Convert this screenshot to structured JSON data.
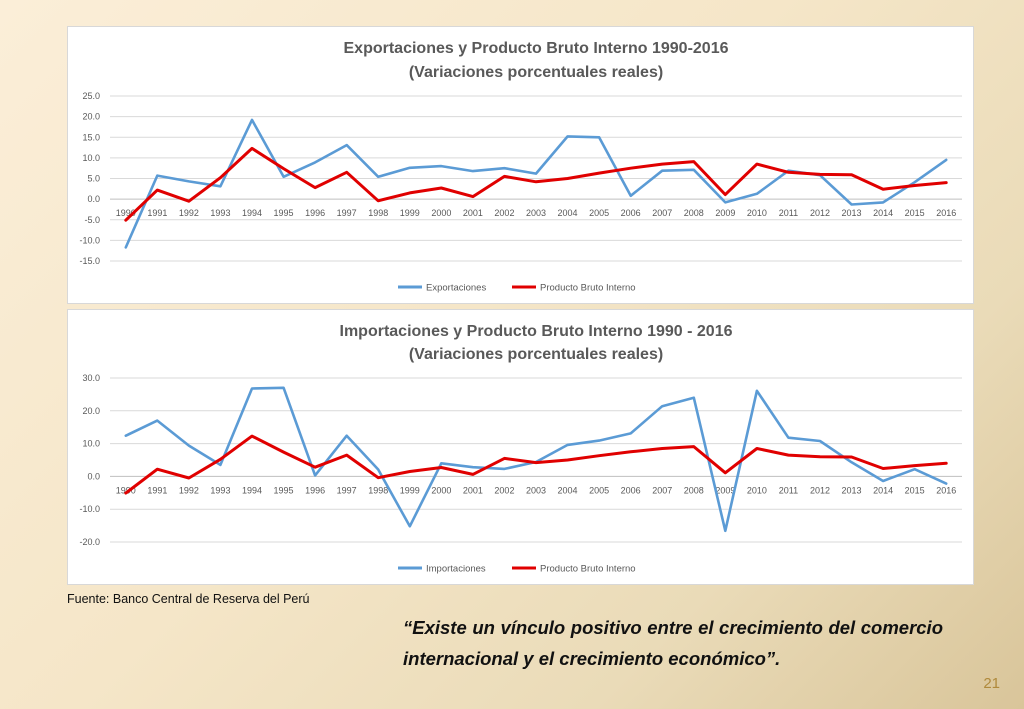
{
  "chart_data": [
    {
      "type": "line",
      "title": "Exportaciones y Producto Bruto Interno 1990-2016",
      "subtitle": "(Variaciones porcentuales reales)",
      "categories": [
        "1990",
        "1991",
        "1992",
        "1993",
        "1994",
        "1995",
        "1996",
        "1997",
        "1998",
        "1999",
        "2000",
        "2001",
        "2002",
        "2003",
        "2004",
        "2005",
        "2006",
        "2007",
        "2008",
        "2009",
        "2010",
        "2011",
        "2012",
        "2013",
        "2014",
        "2015",
        "2016"
      ],
      "yticks": [
        "25.0",
        "20.0",
        "15.0",
        "10.0",
        "5.0",
        "0.0",
        "-5.0",
        "-10.0",
        "-15.0"
      ],
      "ylim": [
        -15,
        25
      ],
      "grid": true,
      "legend_position": "bottom",
      "series": [
        {
          "name": "Exportaciones",
          "color": "#5b9bd5",
          "values": [
            -11.7,
            5.7,
            4.3,
            3.1,
            19.2,
            5.4,
            8.9,
            13.1,
            5.4,
            7.6,
            8.0,
            6.8,
            7.5,
            6.2,
            15.2,
            15.0,
            0.8,
            6.9,
            7.1,
            -0.8,
            1.3,
            6.9,
            5.8,
            -1.3,
            -0.8,
            4.1,
            9.5
          ]
        },
        {
          "name": "Producto Bruto Interno",
          "color": "#e00000",
          "values": [
            -5.1,
            2.2,
            -0.5,
            5.2,
            12.3,
            7.4,
            2.8,
            6.5,
            -0.4,
            1.5,
            2.7,
            0.6,
            5.5,
            4.2,
            5.0,
            6.3,
            7.5,
            8.5,
            9.1,
            1.1,
            8.5,
            6.5,
            6.0,
            5.9,
            2.4,
            3.3,
            4.0
          ]
        }
      ]
    },
    {
      "type": "line",
      "title": "Importaciones y Producto Bruto Interno 1990 - 2016",
      "subtitle": "(Variaciones porcentuales reales)",
      "categories": [
        "1990",
        "1991",
        "1992",
        "1993",
        "1994",
        "1995",
        "1996",
        "1997",
        "1998",
        "1999",
        "2000",
        "2001",
        "2002",
        "2003",
        "2004",
        "2005",
        "2006",
        "2007",
        "2008",
        "2009",
        "2010",
        "2011",
        "2012",
        "2013",
        "2014",
        "2015",
        "2016"
      ],
      "yticks": [
        "30.0",
        "20.0",
        "10.0",
        "0.0",
        "-10.0",
        "-20.0"
      ],
      "ylim": [
        -20,
        30
      ],
      "grid": true,
      "legend_position": "bottom",
      "series": [
        {
          "name": "Importaciones",
          "color": "#5b9bd5",
          "values": [
            12.4,
            17.0,
            9.4,
            3.5,
            26.8,
            27.0,
            0.3,
            12.4,
            2.1,
            -15.2,
            4.0,
            2.8,
            2.3,
            4.4,
            9.6,
            10.9,
            13.1,
            21.4,
            24.0,
            -16.6,
            26.1,
            11.8,
            10.8,
            4.3,
            -1.4,
            2.2,
            -2.2
          ]
        },
        {
          "name": "Producto Bruto Interno",
          "color": "#e00000",
          "values": [
            -5.1,
            2.2,
            -0.5,
            5.2,
            12.3,
            7.4,
            2.8,
            6.5,
            -0.4,
            1.5,
            2.7,
            0.6,
            5.5,
            4.2,
            5.0,
            6.3,
            7.5,
            8.5,
            9.1,
            1.1,
            8.5,
            6.5,
            6.0,
            5.9,
            2.4,
            3.3,
            4.0
          ]
        }
      ]
    }
  ],
  "footer": {
    "source": "Fuente: Banco Central de Reserva del Perú",
    "quote": "“Existe un vínculo positivo entre el crecimiento del comercio internacional y el crecimiento económico”.",
    "page_number": "21"
  }
}
